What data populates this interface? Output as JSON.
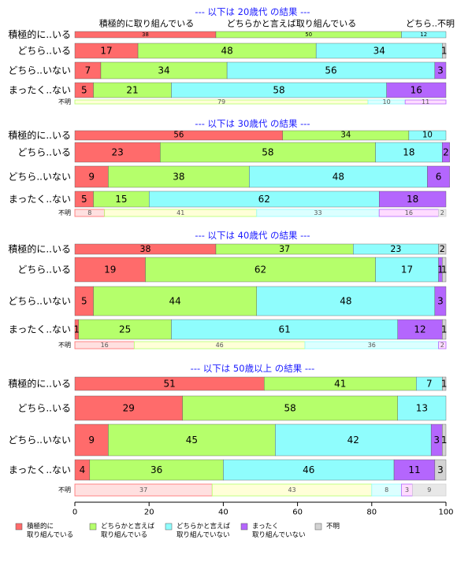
{
  "chart_data": {
    "type": "bar",
    "stacked": true,
    "orientation": "horizontal",
    "xlim": [
      0,
      100
    ],
    "x_ticks": [
      0,
      20,
      40,
      60,
      80,
      100
    ],
    "top_col_labels": [
      "積極的に取り組んでいる",
      "どちらかと言えば取り組んでいる",
      "どちら..不明"
    ],
    "legend": [
      {
        "label": "積極的に\n取り組んでいる",
        "color": "#ff6b6b"
      },
      {
        "label": "どちらかと言えば\n取り組んでいる",
        "color": "#b5ff6b"
      },
      {
        "label": "どちらかと言えば\n取り組んでいない",
        "color": "#8ffdfd"
      },
      {
        "label": "まったく\n取り組んでいない",
        "color": "#b466fd"
      },
      {
        "label": "不明",
        "color": "#d3d3d3"
      }
    ],
    "panels": [
      {
        "title": "--- 以下は 20歳代 の結果 ---",
        "rows": [
          {
            "label": "積極的に..いる",
            "values": [
              38,
              50,
              12,
              0,
              0
            ]
          },
          {
            "label": "どちら..いる",
            "values": [
              17,
              48,
              34,
              0,
              1
            ]
          },
          {
            "label": "どちら..いない",
            "values": [
              7,
              34,
              56,
              3,
              0
            ]
          },
          {
            "label": "まったく..ない",
            "values": [
              5,
              21,
              58,
              16,
              0
            ]
          }
        ],
        "unknown_label": "不明",
        "unknown_values": [
          0,
          79,
          10,
          11,
          0
        ]
      },
      {
        "title": "--- 以下は 30歳代 の結果 ---",
        "rows": [
          {
            "label": "積極的に..いる",
            "values": [
              56,
              34,
              10,
              0,
              0
            ]
          },
          {
            "label": "どちら..いる",
            "values": [
              23,
              58,
              18,
              2,
              0
            ]
          },
          {
            "label": "どちら..いない",
            "values": [
              9,
              38,
              48,
              6,
              0
            ]
          },
          {
            "label": "まったく..ない",
            "values": [
              5,
              15,
              62,
              18,
              0
            ]
          }
        ],
        "unknown_label": "不明",
        "unknown_values": [
          8,
          41,
          33,
          16,
          2
        ]
      },
      {
        "title": "--- 以下は 40歳代 の結果 ---",
        "rows": [
          {
            "label": "積極的に..いる",
            "values": [
              38,
              37,
              23,
              0,
              2
            ]
          },
          {
            "label": "どちら..いる",
            "values": [
              19,
              62,
              17,
              1,
              1
            ]
          },
          {
            "label": "どちら..いない",
            "values": [
              5,
              44,
              48,
              3,
              0
            ]
          },
          {
            "label": "まったく..ない",
            "values": [
              1,
              25,
              61,
              12,
              1
            ]
          }
        ],
        "unknown_label": "不明",
        "unknown_values": [
          16,
          46,
          36,
          2,
          0
        ]
      },
      {
        "title": "--- 以下は 50歳以上 の結果 ---",
        "rows": [
          {
            "label": "積極的に..いる",
            "values": [
              51,
              41,
              7,
              0,
              1
            ]
          },
          {
            "label": "どちら..いる",
            "values": [
              29,
              58,
              13,
              0,
              0
            ]
          },
          {
            "label": "どちら..いない",
            "values": [
              9,
              45,
              42,
              3,
              1
            ]
          },
          {
            "label": "まったく..ない",
            "values": [
              4,
              36,
              46,
              11,
              3
            ]
          }
        ],
        "unknown_label": "不明",
        "unknown_values": [
          37,
          43,
          8,
          3,
          9
        ]
      }
    ]
  }
}
